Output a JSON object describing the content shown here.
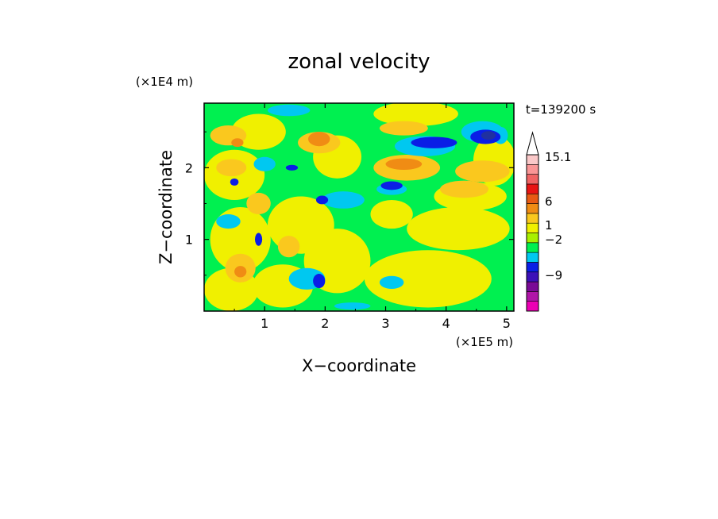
{
  "chart_data": {
    "type": "heatmap",
    "title": "zonal velocity",
    "xlabel": "X−coordinate",
    "ylabel": "Z−coordinate",
    "x_unit": "(×1E5 m)",
    "y_unit": "(×1E4 m)",
    "time_label": "t=139200 s",
    "xlim": [
      0,
      5.12
    ],
    "ylim": [
      0,
      2.9
    ],
    "x_ticks": [
      {
        "value": 1,
        "label": "1"
      },
      {
        "value": 2,
        "label": "2"
      },
      {
        "value": 3,
        "label": "3"
      },
      {
        "value": 4,
        "label": "4"
      },
      {
        "value": 5,
        "label": "5"
      }
    ],
    "y_ticks": [
      {
        "value": 1,
        "label": "1"
      },
      {
        "value": 2,
        "label": "2"
      }
    ],
    "colorbar": {
      "levels": [
        {
          "color": "#ec00b4"
        },
        {
          "color": "#b014a8"
        },
        {
          "color": "#7a0a96"
        },
        {
          "color": "#3c10b8"
        },
        {
          "color": "#0a1ee6"
        },
        {
          "color": "#00c8f0"
        },
        {
          "color": "#00f050"
        },
        {
          "color": "#a8f000"
        },
        {
          "color": "#f0f000"
        },
        {
          "color": "#fac81e"
        },
        {
          "color": "#f08c14"
        },
        {
          "color": "#e85a14"
        },
        {
          "color": "#e81414"
        },
        {
          "color": "#f06464"
        },
        {
          "color": "#fa9696"
        },
        {
          "color": "#fac8c8"
        }
      ],
      "labels": [
        {
          "value": 15.1,
          "label": "15.1"
        },
        {
          "value": 6,
          "label": "6"
        },
        {
          "value": 1,
          "label": "1"
        },
        {
          "value": -2,
          "label": "−2"
        },
        {
          "value": -9,
          "label": "−9"
        }
      ]
    },
    "field_palette": {
      "background": "#00f050",
      "yellow": "#f0f000",
      "orange": "#fac81e",
      "dark_orange": "#f08c14",
      "cyan": "#00c8f0",
      "blue": "#0a1ee6",
      "navy": "#2030a0"
    },
    "field_patches": [
      {
        "x": 0.45,
        "y": 0.3,
        "rx": 0.45,
        "ry": 0.3,
        "color": "yellow"
      },
      {
        "x": 0.6,
        "y": 1.0,
        "rx": 0.5,
        "ry": 0.45,
        "color": "yellow"
      },
      {
        "x": 0.5,
        "y": 1.9,
        "rx": 0.5,
        "ry": 0.35,
        "color": "yellow"
      },
      {
        "x": 0.9,
        "y": 2.5,
        "rx": 0.45,
        "ry": 0.25,
        "color": "yellow"
      },
      {
        "x": 1.6,
        "y": 1.2,
        "rx": 0.55,
        "ry": 0.4,
        "color": "yellow"
      },
      {
        "x": 2.2,
        "y": 0.7,
        "rx": 0.55,
        "ry": 0.45,
        "color": "yellow"
      },
      {
        "x": 1.3,
        "y": 0.35,
        "rx": 0.5,
        "ry": 0.3,
        "color": "yellow"
      },
      {
        "x": 2.2,
        "y": 2.15,
        "rx": 0.4,
        "ry": 0.3,
        "color": "yellow"
      },
      {
        "x": 3.7,
        "y": 0.45,
        "rx": 1.05,
        "ry": 0.4,
        "color": "yellow"
      },
      {
        "x": 4.2,
        "y": 1.15,
        "rx": 0.85,
        "ry": 0.3,
        "color": "yellow"
      },
      {
        "x": 4.4,
        "y": 1.6,
        "rx": 0.6,
        "ry": 0.2,
        "color": "yellow"
      },
      {
        "x": 3.5,
        "y": 2.75,
        "rx": 0.7,
        "ry": 0.17,
        "color": "yellow"
      },
      {
        "x": 4.8,
        "y": 2.1,
        "rx": 0.35,
        "ry": 0.35,
        "color": "yellow"
      },
      {
        "x": 3.1,
        "y": 1.35,
        "rx": 0.35,
        "ry": 0.2,
        "color": "yellow"
      },
      {
        "x": 0.4,
        "y": 2.45,
        "rx": 0.3,
        "ry": 0.14,
        "color": "orange"
      },
      {
        "x": 0.45,
        "y": 2.0,
        "rx": 0.25,
        "ry": 0.12,
        "color": "orange"
      },
      {
        "x": 0.6,
        "y": 0.6,
        "rx": 0.25,
        "ry": 0.2,
        "color": "orange"
      },
      {
        "x": 1.9,
        "y": 2.35,
        "rx": 0.35,
        "ry": 0.15,
        "color": "orange"
      },
      {
        "x": 3.35,
        "y": 2.0,
        "rx": 0.55,
        "ry": 0.18,
        "color": "orange"
      },
      {
        "x": 4.3,
        "y": 1.7,
        "rx": 0.4,
        "ry": 0.12,
        "color": "orange"
      },
      {
        "x": 4.6,
        "y": 1.95,
        "rx": 0.45,
        "ry": 0.15,
        "color": "orange"
      },
      {
        "x": 3.3,
        "y": 2.55,
        "rx": 0.4,
        "ry": 0.1,
        "color": "orange"
      },
      {
        "x": 0.9,
        "y": 1.5,
        "rx": 0.2,
        "ry": 0.15,
        "color": "orange"
      },
      {
        "x": 1.4,
        "y": 0.9,
        "rx": 0.18,
        "ry": 0.15,
        "color": "orange"
      },
      {
        "x": 1.9,
        "y": 2.4,
        "rx": 0.18,
        "ry": 0.1,
        "color": "dark_orange"
      },
      {
        "x": 3.3,
        "y": 2.05,
        "rx": 0.3,
        "ry": 0.08,
        "color": "dark_orange"
      },
      {
        "x": 0.55,
        "y": 2.35,
        "rx": 0.1,
        "ry": 0.06,
        "color": "dark_orange"
      },
      {
        "x": 0.6,
        "y": 0.55,
        "rx": 0.1,
        "ry": 0.08,
        "color": "dark_orange"
      },
      {
        "x": 2.3,
        "y": 1.55,
        "rx": 0.35,
        "ry": 0.12,
        "color": "cyan"
      },
      {
        "x": 1.7,
        "y": 0.45,
        "rx": 0.3,
        "ry": 0.15,
        "color": "cyan"
      },
      {
        "x": 0.4,
        "y": 1.25,
        "rx": 0.2,
        "ry": 0.1,
        "color": "cyan"
      },
      {
        "x": 3.65,
        "y": 2.3,
        "rx": 0.5,
        "ry": 0.14,
        "color": "cyan"
      },
      {
        "x": 4.6,
        "y": 2.5,
        "rx": 0.35,
        "ry": 0.15,
        "color": "cyan"
      },
      {
        "x": 1.4,
        "y": 2.8,
        "rx": 0.35,
        "ry": 0.08,
        "color": "cyan"
      },
      {
        "x": 3.1,
        "y": 0.4,
        "rx": 0.2,
        "ry": 0.09,
        "color": "cyan"
      },
      {
        "x": 2.45,
        "y": 0.07,
        "rx": 0.3,
        "ry": 0.05,
        "color": "cyan"
      },
      {
        "x": 4.9,
        "y": 2.45,
        "rx": 0.12,
        "ry": 0.12,
        "color": "cyan"
      },
      {
        "x": 1.0,
        "y": 2.05,
        "rx": 0.18,
        "ry": 0.1,
        "color": "cyan"
      },
      {
        "x": 3.1,
        "y": 1.7,
        "rx": 0.25,
        "ry": 0.08,
        "color": "cyan"
      },
      {
        "x": 3.8,
        "y": 2.35,
        "rx": 0.38,
        "ry": 0.08,
        "color": "blue"
      },
      {
        "x": 4.65,
        "y": 2.43,
        "rx": 0.25,
        "ry": 0.1,
        "color": "blue"
      },
      {
        "x": 3.1,
        "y": 1.75,
        "rx": 0.18,
        "ry": 0.06,
        "color": "blue"
      },
      {
        "x": 1.9,
        "y": 0.42,
        "rx": 0.1,
        "ry": 0.1,
        "color": "blue"
      },
      {
        "x": 0.9,
        "y": 1.0,
        "rx": 0.06,
        "ry": 0.09,
        "color": "blue"
      },
      {
        "x": 0.5,
        "y": 1.8,
        "rx": 0.07,
        "ry": 0.05,
        "color": "blue"
      },
      {
        "x": 1.95,
        "y": 1.55,
        "rx": 0.1,
        "ry": 0.06,
        "color": "blue"
      },
      {
        "x": 1.45,
        "y": 2.0,
        "rx": 0.1,
        "ry": 0.04,
        "color": "blue"
      },
      {
        "x": 4.7,
        "y": 2.45,
        "rx": 0.12,
        "ry": 0.06,
        "color": "navy"
      }
    ]
  }
}
